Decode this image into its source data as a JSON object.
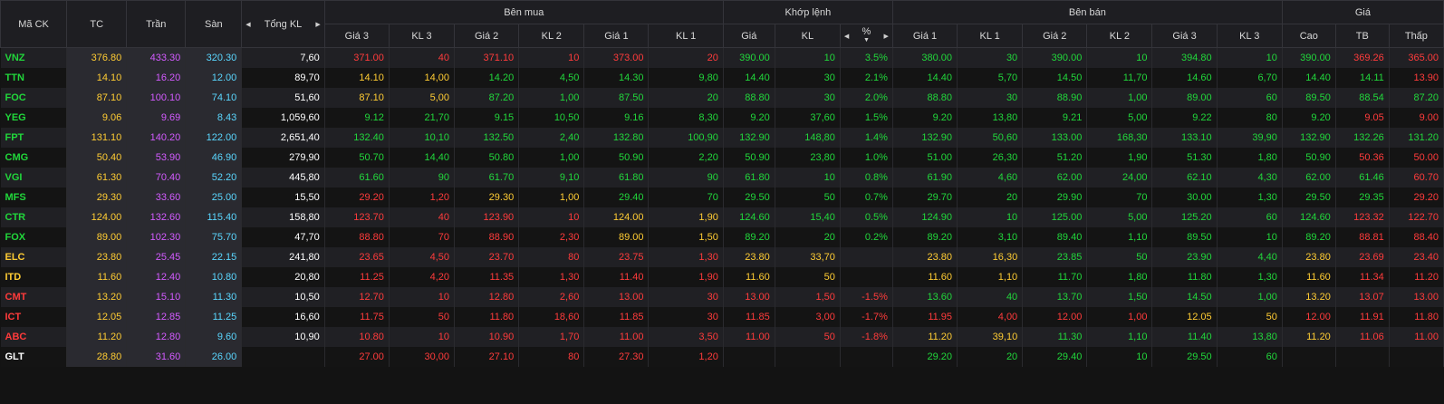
{
  "headers": {
    "symbol": "Mã CK",
    "ref": "TC",
    "ceil": "Trần",
    "floor": "Sàn",
    "total_vol": "Tổng KL",
    "buy_group": "Bên mua",
    "match_group": "Khớp lệnh",
    "sell_group": "Bên bán",
    "price_group": "Giá",
    "buy": [
      "Giá 3",
      "KL 3",
      "Giá 2",
      "KL 2",
      "Giá 1",
      "KL 1"
    ],
    "match": [
      "Giá",
      "KL",
      "%"
    ],
    "sell": [
      "Giá 1",
      "KL 1",
      "Giá 2",
      "KL 2",
      "Giá 3",
      "KL 3"
    ],
    "price": [
      "Cao",
      "TB",
      "Thấp"
    ]
  },
  "colors": {
    "up": "#21d73b",
    "down": "#ff3b3b",
    "ref": "#ffcc33",
    "ceil": "#d35bff",
    "floor": "#5ad7ff",
    "plain": "#ffffff"
  },
  "rows": [
    {
      "s": "VNZ",
      "sc": "v",
      "tc": "376.80",
      "tr": "433.30",
      "sa": "320.30",
      "tkl": "7,60",
      "b": [
        [
          "371.00",
          "r"
        ],
        [
          "40",
          "r"
        ],
        [
          "371.10",
          "r"
        ],
        [
          "10",
          "r"
        ],
        [
          "373.00",
          "r"
        ],
        [
          "20",
          "r"
        ]
      ],
      "m": [
        [
          "390.00",
          "v"
        ],
        [
          "10",
          "v"
        ],
        [
          "3.5%",
          "v"
        ]
      ],
      "a": [
        [
          "380.00",
          "v"
        ],
        [
          "30",
          "v"
        ],
        [
          "390.00",
          "v"
        ],
        [
          "10",
          "v"
        ],
        [
          "394.80",
          "v"
        ],
        [
          "10",
          "v"
        ]
      ],
      "p": [
        [
          "390.00",
          "v"
        ],
        [
          "369.26",
          "r"
        ],
        [
          "365.00",
          "r"
        ]
      ]
    },
    {
      "s": "TTN",
      "sc": "v",
      "tc": "14.10",
      "tr": "16.20",
      "sa": "12.00",
      "tkl": "89,70",
      "b": [
        [
          "14.10",
          "y"
        ],
        [
          "14,00",
          "y"
        ],
        [
          "14.20",
          "v"
        ],
        [
          "4,50",
          "v"
        ],
        [
          "14.30",
          "v"
        ],
        [
          "9,80",
          "v"
        ]
      ],
      "m": [
        [
          "14.40",
          "v"
        ],
        [
          "30",
          "v"
        ],
        [
          "2.1%",
          "v"
        ]
      ],
      "a": [
        [
          "14.40",
          "v"
        ],
        [
          "5,70",
          "v"
        ],
        [
          "14.50",
          "v"
        ],
        [
          "11,70",
          "v"
        ],
        [
          "14.60",
          "v"
        ],
        [
          "6,70",
          "v"
        ]
      ],
      "p": [
        [
          "14.40",
          "v"
        ],
        [
          "14.11",
          "v"
        ],
        [
          "13.90",
          "r"
        ]
      ]
    },
    {
      "s": "FOC",
      "sc": "v",
      "tc": "87.10",
      "tr": "100.10",
      "sa": "74.10",
      "tkl": "51,60",
      "b": [
        [
          "87.10",
          "y"
        ],
        [
          "5,00",
          "y"
        ],
        [
          "87.20",
          "v"
        ],
        [
          "1,00",
          "v"
        ],
        [
          "87.50",
          "v"
        ],
        [
          "20",
          "v"
        ]
      ],
      "m": [
        [
          "88.80",
          "v"
        ],
        [
          "30",
          "v"
        ],
        [
          "2.0%",
          "v"
        ]
      ],
      "a": [
        [
          "88.80",
          "v"
        ],
        [
          "30",
          "v"
        ],
        [
          "88.90",
          "v"
        ],
        [
          "1,00",
          "v"
        ],
        [
          "89.00",
          "v"
        ],
        [
          "60",
          "v"
        ]
      ],
      "p": [
        [
          "89.50",
          "v"
        ],
        [
          "88.54",
          "v"
        ],
        [
          "87.20",
          "v"
        ]
      ]
    },
    {
      "s": "YEG",
      "sc": "v",
      "tc": "9.06",
      "tr": "9.69",
      "sa": "8.43",
      "tkl": "1,059,60",
      "b": [
        [
          "9.12",
          "v"
        ],
        [
          "21,70",
          "v"
        ],
        [
          "9.15",
          "v"
        ],
        [
          "10,50",
          "v"
        ],
        [
          "9.16",
          "v"
        ],
        [
          "8,30",
          "v"
        ]
      ],
      "m": [
        [
          "9.20",
          "v"
        ],
        [
          "37,60",
          "v"
        ],
        [
          "1.5%",
          "v"
        ]
      ],
      "a": [
        [
          "9.20",
          "v"
        ],
        [
          "13,80",
          "v"
        ],
        [
          "9.21",
          "v"
        ],
        [
          "5,00",
          "v"
        ],
        [
          "9.22",
          "v"
        ],
        [
          "80",
          "v"
        ]
      ],
      "p": [
        [
          "9.20",
          "v"
        ],
        [
          "9.05",
          "r"
        ],
        [
          "9.00",
          "r"
        ]
      ]
    },
    {
      "s": "FPT",
      "sc": "v",
      "tc": "131.10",
      "tr": "140.20",
      "sa": "122.00",
      "tkl": "2,651,40",
      "b": [
        [
          "132.40",
          "v"
        ],
        [
          "10,10",
          "v"
        ],
        [
          "132.50",
          "v"
        ],
        [
          "2,40",
          "v"
        ],
        [
          "132.80",
          "v"
        ],
        [
          "100,90",
          "v"
        ]
      ],
      "m": [
        [
          "132.90",
          "v"
        ],
        [
          "148,80",
          "v"
        ],
        [
          "1.4%",
          "v"
        ]
      ],
      "a": [
        [
          "132.90",
          "v"
        ],
        [
          "50,60",
          "v"
        ],
        [
          "133.00",
          "v"
        ],
        [
          "168,30",
          "v"
        ],
        [
          "133.10",
          "v"
        ],
        [
          "39,90",
          "v"
        ]
      ],
      "p": [
        [
          "132.90",
          "v"
        ],
        [
          "132.26",
          "v"
        ],
        [
          "131.20",
          "v"
        ]
      ]
    },
    {
      "s": "CMG",
      "sc": "v",
      "tc": "50.40",
      "tr": "53.90",
      "sa": "46.90",
      "tkl": "279,90",
      "b": [
        [
          "50.70",
          "v"
        ],
        [
          "14,40",
          "v"
        ],
        [
          "50.80",
          "v"
        ],
        [
          "1,00",
          "v"
        ],
        [
          "50.90",
          "v"
        ],
        [
          "2,20",
          "v"
        ]
      ],
      "m": [
        [
          "50.90",
          "v"
        ],
        [
          "23,80",
          "v"
        ],
        [
          "1.0%",
          "v"
        ]
      ],
      "a": [
        [
          "51.00",
          "v"
        ],
        [
          "26,30",
          "v"
        ],
        [
          "51.20",
          "v"
        ],
        [
          "1,90",
          "v"
        ],
        [
          "51.30",
          "v"
        ],
        [
          "1,80",
          "v"
        ]
      ],
      "p": [
        [
          "50.90",
          "v"
        ],
        [
          "50.36",
          "r"
        ],
        [
          "50.00",
          "r"
        ]
      ]
    },
    {
      "s": "VGI",
      "sc": "v",
      "tc": "61.30",
      "tr": "70.40",
      "sa": "52.20",
      "tkl": "445,80",
      "b": [
        [
          "61.60",
          "v"
        ],
        [
          "90",
          "v"
        ],
        [
          "61.70",
          "v"
        ],
        [
          "9,10",
          "v"
        ],
        [
          "61.80",
          "v"
        ],
        [
          "90",
          "v"
        ]
      ],
      "m": [
        [
          "61.80",
          "v"
        ],
        [
          "10",
          "v"
        ],
        [
          "0.8%",
          "v"
        ]
      ],
      "a": [
        [
          "61.90",
          "v"
        ],
        [
          "4,60",
          "v"
        ],
        [
          "62.00",
          "v"
        ],
        [
          "24,00",
          "v"
        ],
        [
          "62.10",
          "v"
        ],
        [
          "4,30",
          "v"
        ]
      ],
      "p": [
        [
          "62.00",
          "v"
        ],
        [
          "61.46",
          "v"
        ],
        [
          "60.70",
          "r"
        ]
      ]
    },
    {
      "s": "MFS",
      "sc": "v",
      "tc": "29.30",
      "tr": "33.60",
      "sa": "25.00",
      "tkl": "15,50",
      "b": [
        [
          "29.20",
          "r"
        ],
        [
          "1,20",
          "r"
        ],
        [
          "29.30",
          "y"
        ],
        [
          "1,00",
          "y"
        ],
        [
          "29.40",
          "v"
        ],
        [
          "70",
          "v"
        ]
      ],
      "m": [
        [
          "29.50",
          "v"
        ],
        [
          "50",
          "v"
        ],
        [
          "0.7%",
          "v"
        ]
      ],
      "a": [
        [
          "29.70",
          "v"
        ],
        [
          "20",
          "v"
        ],
        [
          "29.90",
          "v"
        ],
        [
          "70",
          "v"
        ],
        [
          "30.00",
          "v"
        ],
        [
          "1,30",
          "v"
        ]
      ],
      "p": [
        [
          "29.50",
          "v"
        ],
        [
          "29.35",
          "v"
        ],
        [
          "29.20",
          "r"
        ]
      ]
    },
    {
      "s": "CTR",
      "sc": "v",
      "tc": "124.00",
      "tr": "132.60",
      "sa": "115.40",
      "tkl": "158,80",
      "b": [
        [
          "123.70",
          "r"
        ],
        [
          "40",
          "r"
        ],
        [
          "123.90",
          "r"
        ],
        [
          "10",
          "r"
        ],
        [
          "124.00",
          "y"
        ],
        [
          "1,90",
          "y"
        ]
      ],
      "m": [
        [
          "124.60",
          "v"
        ],
        [
          "15,40",
          "v"
        ],
        [
          "0.5%",
          "v"
        ]
      ],
      "a": [
        [
          "124.90",
          "v"
        ],
        [
          "10",
          "v"
        ],
        [
          "125.00",
          "v"
        ],
        [
          "5,00",
          "v"
        ],
        [
          "125.20",
          "v"
        ],
        [
          "60",
          "v"
        ]
      ],
      "p": [
        [
          "124.60",
          "v"
        ],
        [
          "123.32",
          "r"
        ],
        [
          "122.70",
          "r"
        ]
      ]
    },
    {
      "s": "FOX",
      "sc": "v",
      "tc": "89.00",
      "tr": "102.30",
      "sa": "75.70",
      "tkl": "47,70",
      "b": [
        [
          "88.80",
          "r"
        ],
        [
          "70",
          "r"
        ],
        [
          "88.90",
          "r"
        ],
        [
          "2,30",
          "r"
        ],
        [
          "89.00",
          "y"
        ],
        [
          "1,50",
          "y"
        ]
      ],
      "m": [
        [
          "89.20",
          "v"
        ],
        [
          "20",
          "v"
        ],
        [
          "0.2%",
          "v"
        ]
      ],
      "a": [
        [
          "89.20",
          "v"
        ],
        [
          "3,10",
          "v"
        ],
        [
          "89.40",
          "v"
        ],
        [
          "1,10",
          "v"
        ],
        [
          "89.50",
          "v"
        ],
        [
          "10",
          "v"
        ]
      ],
      "p": [
        [
          "89.20",
          "v"
        ],
        [
          "88.81",
          "r"
        ],
        [
          "88.40",
          "r"
        ]
      ]
    },
    {
      "s": "ELC",
      "sc": "y",
      "tc": "23.80",
      "tr": "25.45",
      "sa": "22.15",
      "tkl": "241,80",
      "b": [
        [
          "23.65",
          "r"
        ],
        [
          "4,50",
          "r"
        ],
        [
          "23.70",
          "r"
        ],
        [
          "80",
          "r"
        ],
        [
          "23.75",
          "r"
        ],
        [
          "1,30",
          "r"
        ]
      ],
      "m": [
        [
          "23.80",
          "y"
        ],
        [
          "33,70",
          "y"
        ],
        [
          "",
          ""
        ]
      ],
      "a": [
        [
          "23.80",
          "y"
        ],
        [
          "16,30",
          "y"
        ],
        [
          "23.85",
          "v"
        ],
        [
          "50",
          "v"
        ],
        [
          "23.90",
          "v"
        ],
        [
          "4,40",
          "v"
        ]
      ],
      "p": [
        [
          "23.80",
          "y"
        ],
        [
          "23.69",
          "r"
        ],
        [
          "23.40",
          "r"
        ]
      ]
    },
    {
      "s": "ITD",
      "sc": "y",
      "tc": "11.60",
      "tr": "12.40",
      "sa": "10.80",
      "tkl": "20,80",
      "b": [
        [
          "11.25",
          "r"
        ],
        [
          "4,20",
          "r"
        ],
        [
          "11.35",
          "r"
        ],
        [
          "1,30",
          "r"
        ],
        [
          "11.40",
          "r"
        ],
        [
          "1,90",
          "r"
        ]
      ],
      "m": [
        [
          "11.60",
          "y"
        ],
        [
          "50",
          "y"
        ],
        [
          "",
          ""
        ]
      ],
      "a": [
        [
          "11.60",
          "y"
        ],
        [
          "1,10",
          "y"
        ],
        [
          "11.70",
          "v"
        ],
        [
          "1,80",
          "v"
        ],
        [
          "11.80",
          "v"
        ],
        [
          "1,30",
          "v"
        ]
      ],
      "p": [
        [
          "11.60",
          "y"
        ],
        [
          "11.34",
          "r"
        ],
        [
          "11.20",
          "r"
        ]
      ]
    },
    {
      "s": "CMT",
      "sc": "r",
      "tc": "13.20",
      "tr": "15.10",
      "sa": "11.30",
      "tkl": "10,50",
      "b": [
        [
          "12.70",
          "r"
        ],
        [
          "10",
          "r"
        ],
        [
          "12.80",
          "r"
        ],
        [
          "2,60",
          "r"
        ],
        [
          "13.00",
          "r"
        ],
        [
          "30",
          "r"
        ]
      ],
      "m": [
        [
          "13.00",
          "r"
        ],
        [
          "1,50",
          "r"
        ],
        [
          "-1.5%",
          "r"
        ]
      ],
      "a": [
        [
          "13.60",
          "v"
        ],
        [
          "40",
          "v"
        ],
        [
          "13.70",
          "v"
        ],
        [
          "1,50",
          "v"
        ],
        [
          "14.50",
          "v"
        ],
        [
          "1,00",
          "v"
        ]
      ],
      "p": [
        [
          "13.20",
          "y"
        ],
        [
          "13.07",
          "r"
        ],
        [
          "13.00",
          "r"
        ]
      ]
    },
    {
      "s": "ICT",
      "sc": "r",
      "tc": "12.05",
      "tr": "12.85",
      "sa": "11.25",
      "tkl": "16,60",
      "b": [
        [
          "11.75",
          "r"
        ],
        [
          "50",
          "r"
        ],
        [
          "11.80",
          "r"
        ],
        [
          "18,60",
          "r"
        ],
        [
          "11.85",
          "r"
        ],
        [
          "30",
          "r"
        ]
      ],
      "m": [
        [
          "11.85",
          "r"
        ],
        [
          "3,00",
          "r"
        ],
        [
          "-1.7%",
          "r"
        ]
      ],
      "a": [
        [
          "11.95",
          "r"
        ],
        [
          "4,00",
          "r"
        ],
        [
          "12.00",
          "r"
        ],
        [
          "1,00",
          "r"
        ],
        [
          "12.05",
          "y"
        ],
        [
          "50",
          "y"
        ]
      ],
      "p": [
        [
          "12.00",
          "r"
        ],
        [
          "11.91",
          "r"
        ],
        [
          "11.80",
          "r"
        ]
      ]
    },
    {
      "s": "ABC",
      "sc": "r",
      "tc": "11.20",
      "tr": "12.80",
      "sa": "9.60",
      "tkl": "10,90",
      "b": [
        [
          "10.80",
          "r"
        ],
        [
          "10",
          "r"
        ],
        [
          "10.90",
          "r"
        ],
        [
          "1,70",
          "r"
        ],
        [
          "11.00",
          "r"
        ],
        [
          "3,50",
          "r"
        ]
      ],
      "m": [
        [
          "11.00",
          "r"
        ],
        [
          "50",
          "r"
        ],
        [
          "-1.8%",
          "r"
        ]
      ],
      "a": [
        [
          "11.20",
          "y"
        ],
        [
          "39,10",
          "y"
        ],
        [
          "11.30",
          "v"
        ],
        [
          "1,10",
          "v"
        ],
        [
          "11.40",
          "v"
        ],
        [
          "13,80",
          "v"
        ]
      ],
      "p": [
        [
          "11.20",
          "y"
        ],
        [
          "11.06",
          "r"
        ],
        [
          "11.00",
          "r"
        ]
      ]
    },
    {
      "s": "GLT",
      "sc": "w",
      "tc": "28.80",
      "tr": "31.60",
      "sa": "26.00",
      "tkl": "",
      "b": [
        [
          "27.00",
          "r"
        ],
        [
          "30,00",
          "r"
        ],
        [
          "27.10",
          "r"
        ],
        [
          "80",
          "r"
        ],
        [
          "27.30",
          "r"
        ],
        [
          "1,20",
          "r"
        ]
      ],
      "m": [
        [
          "",
          ""
        ],
        [
          "",
          ""
        ],
        [
          "",
          ""
        ]
      ],
      "a": [
        [
          "29.20",
          "v"
        ],
        [
          "20",
          "v"
        ],
        [
          "29.40",
          "v"
        ],
        [
          "10",
          "v"
        ],
        [
          "29.50",
          "v"
        ],
        [
          "60",
          "v"
        ]
      ],
      "p": [
        [
          "",
          ""
        ],
        [
          "",
          ""
        ],
        [
          "",
          ""
        ]
      ]
    }
  ]
}
